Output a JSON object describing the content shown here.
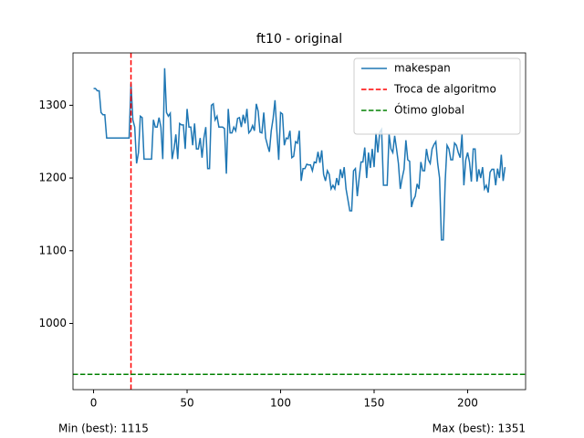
{
  "chart_data": {
    "type": "line",
    "title": "ft10 - original",
    "x": [
      0,
      1,
      2,
      3,
      4,
      5,
      6,
      7,
      8,
      9,
      10,
      11,
      12,
      13,
      14,
      15,
      16,
      17,
      18,
      19,
      20,
      21,
      22,
      23,
      24,
      25,
      26,
      27,
      28,
      29,
      30,
      31,
      32,
      33,
      34,
      35,
      36,
      37,
      38,
      39,
      40,
      41,
      42,
      43,
      44,
      45,
      46,
      47,
      48,
      49,
      50,
      51,
      52,
      53,
      54,
      55,
      56,
      57,
      58,
      59,
      60,
      61,
      62,
      63,
      64,
      65,
      66,
      67,
      68,
      69,
      70,
      71,
      72,
      73,
      74,
      75,
      76,
      77,
      78,
      79,
      80,
      81,
      82,
      83,
      84,
      85,
      86,
      87,
      88,
      89,
      90,
      91,
      92,
      93,
      94,
      95,
      96,
      97,
      98,
      99,
      100,
      101,
      102,
      103,
      104,
      105,
      106,
      107,
      108,
      109,
      110,
      111,
      112,
      113,
      114,
      115,
      116,
      117,
      118,
      119,
      120,
      121,
      122,
      123,
      124,
      125,
      126,
      127,
      128,
      129,
      130,
      131,
      132,
      133,
      134,
      135,
      136,
      137,
      138,
      139,
      140,
      141,
      142,
      143,
      144,
      145,
      146,
      147,
      148,
      149,
      150,
      151,
      152,
      153,
      154,
      155,
      156,
      157,
      158,
      159,
      160,
      161,
      162,
      163,
      164,
      165,
      166,
      167,
      168,
      169,
      170,
      171,
      172,
      173,
      174,
      175,
      176,
      177,
      178,
      179,
      180,
      181,
      182,
      183,
      184,
      185,
      186,
      187,
      188,
      189,
      190,
      191,
      192,
      193,
      194,
      195,
      196,
      197,
      198,
      199,
      200,
      201,
      202,
      203,
      204,
      205,
      206,
      207,
      208,
      209,
      210,
      211,
      212,
      213,
      214,
      215,
      216,
      217,
      218,
      219,
      220
    ],
    "series": [
      {
        "name": "makespan",
        "color": "#1f77b4",
        "values": [
          1323,
          1323,
          1320,
          1320,
          1290,
          1287,
          1287,
          1255,
          1255,
          1255,
          1255,
          1255,
          1255,
          1255,
          1255,
          1255,
          1255,
          1255,
          1255,
          1255,
          1330,
          1280,
          1270,
          1220,
          1235,
          1285,
          1283,
          1226,
          1226,
          1226,
          1226,
          1226,
          1280,
          1270,
          1270,
          1283,
          1270,
          1226,
          1351,
          1290,
          1285,
          1289,
          1226,
          1240,
          1260,
          1226,
          1275,
          1273,
          1273,
          1240,
          1295,
          1270,
          1270,
          1245,
          1275,
          1240,
          1240,
          1255,
          1228,
          1255,
          1270,
          1213,
          1213,
          1300,
          1302,
          1280,
          1285,
          1270,
          1270,
          1270,
          1268,
          1206,
          1295,
          1262,
          1262,
          1270,
          1265,
          1282,
          1283,
          1270,
          1287,
          1275,
          1295,
          1262,
          1265,
          1272,
          1265,
          1302,
          1292,
          1263,
          1262,
          1290,
          1255,
          1245,
          1236,
          1265,
          1282,
          1307,
          1265,
          1225,
          1290,
          1288,
          1245,
          1255,
          1254,
          1265,
          1228,
          1230,
          1250,
          1248,
          1265,
          1196,
          1213,
          1213,
          1219,
          1218,
          1218,
          1210,
          1222,
          1221,
          1236,
          1221,
          1238,
          1205,
          1196,
          1210,
          1205,
          1185,
          1190,
          1185,
          1200,
          1190,
          1212,
          1200,
          1215,
          1185,
          1170,
          1155,
          1155,
          1210,
          1213,
          1175,
          1200,
          1222,
          1222,
          1242,
          1200,
          1235,
          1214,
          1240,
          1215,
          1262,
          1235,
          1263,
          1267,
          1190,
          1190,
          1190,
          1260,
          1240,
          1235,
          1258,
          1240,
          1220,
          1185,
          1200,
          1212,
          1252,
          1225,
          1223,
          1160,
          1170,
          1175,
          1192,
          1185,
          1222,
          1210,
          1210,
          1240,
          1225,
          1220,
          1240,
          1246,
          1250,
          1220,
          1200,
          1115,
          1115,
          1195,
          1245,
          1240,
          1225,
          1225,
          1248,
          1245,
          1235,
          1228,
          1260,
          1190,
          1225,
          1235,
          1222,
          1195,
          1240,
          1240,
          1195,
          1212,
          1200,
          1215,
          1185,
          1190,
          1180,
          1208,
          1212,
          1212,
          1190,
          1213,
          1200,
          1232,
          1196,
          1215
        ]
      }
    ],
    "reference_lines": [
      {
        "name": "Troca de algoritmo",
        "orientation": "vertical",
        "value": 20,
        "color": "#ff0000"
      },
      {
        "name": "Ótimo global",
        "orientation": "horizontal",
        "value": 930,
        "color": "#008000"
      }
    ],
    "xlim": [
      -11,
      231
    ],
    "xticks": [
      0,
      50,
      100,
      150,
      200
    ],
    "ylim": [
      909,
      1372
    ],
    "yticks": [
      1000,
      1100,
      1200,
      1300
    ],
    "legend": "upper right",
    "footer_left": "Min (best): 1115",
    "footer_right": "Max (best): 1351"
  }
}
